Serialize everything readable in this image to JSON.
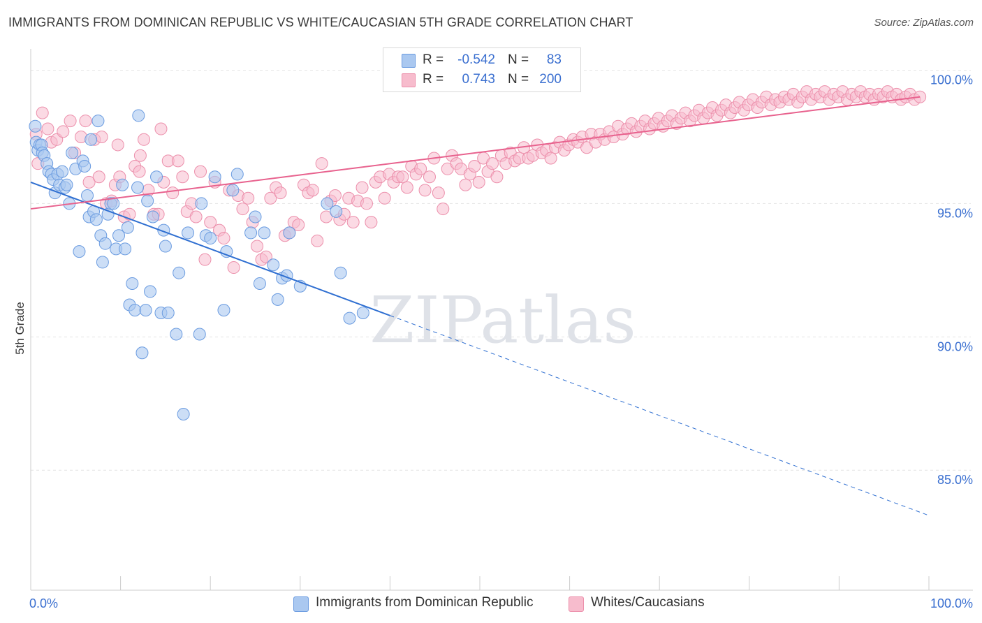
{
  "title": "IMMIGRANTS FROM DOMINICAN REPUBLIC VS WHITE/CAUCASIAN 5TH GRADE CORRELATION CHART",
  "source": "Source: ZipAtlas.com",
  "watermark": "ZIPatlas",
  "colors": {
    "blue_fill": "#aac8f0",
    "blue_stroke": "#6a9be0",
    "blue_line": "#2f6fd1",
    "pink_fill": "#f7bccd",
    "pink_stroke": "#ec8fab",
    "pink_line": "#e8628e",
    "axis_text": "#3a6fd0"
  },
  "legend": {
    "series1": {
      "r_label": "R =",
      "r_value": "-0.542",
      "n_label": "N =",
      "n_value": "83"
    },
    "series2": {
      "r_label": "R =",
      "r_value": "0.743",
      "n_label": "N =",
      "n_value": "200"
    }
  },
  "bottom_legend": {
    "series1": "Immigrants from Dominican Republic",
    "series2": "Whites/Caucasians"
  },
  "chart_data": {
    "type": "scatter",
    "title": "IMMIGRANTS FROM DOMINICAN REPUBLIC VS WHITE/CAUCASIAN 5TH GRADE CORRELATION CHART",
    "xlabel": "",
    "ylabel": "5th Grade",
    "xlim": [
      0,
      100
    ],
    "ylim": [
      80.5,
      100.8
    ],
    "x_tick_labels": [
      "0.0%",
      "100.0%"
    ],
    "y_ticks": [
      85,
      90,
      95,
      100
    ],
    "y_tick_labels": [
      "85.0%",
      "90.0%",
      "95.0%",
      "100.0%"
    ],
    "grid": true,
    "legend_position": "top-center",
    "series": [
      {
        "name": "Immigrants from Dominican Republic",
        "color": "#aac8f0",
        "r": -0.542,
        "n": 83,
        "trend_solid": {
          "x": [
            0,
            40
          ],
          "y": [
            95.8,
            90.8
          ]
        },
        "trend_dashed": {
          "x": [
            40,
            100
          ],
          "y": [
            90.8,
            83.3
          ]
        },
        "points": [
          [
            0.5,
            97.9
          ],
          [
            0.6,
            97.3
          ],
          [
            0.8,
            97.0
          ],
          [
            1.0,
            97.2
          ],
          [
            1.2,
            97.2
          ],
          [
            1.3,
            96.9
          ],
          [
            1.5,
            96.8
          ],
          [
            1.8,
            96.5
          ],
          [
            2.0,
            96.2
          ],
          [
            2.3,
            96.1
          ],
          [
            2.5,
            95.9
          ],
          [
            2.7,
            95.4
          ],
          [
            3.0,
            96.1
          ],
          [
            3.2,
            95.7
          ],
          [
            3.5,
            96.2
          ],
          [
            3.8,
            95.6
          ],
          [
            4.0,
            95.7
          ],
          [
            4.3,
            95.0
          ],
          [
            4.6,
            96.9
          ],
          [
            5.0,
            96.3
          ],
          [
            5.4,
            93.2
          ],
          [
            5.8,
            96.6
          ],
          [
            6.0,
            96.4
          ],
          [
            6.3,
            95.3
          ],
          [
            6.5,
            94.5
          ],
          [
            6.7,
            97.4
          ],
          [
            7.0,
            94.7
          ],
          [
            7.3,
            94.4
          ],
          [
            7.5,
            98.1
          ],
          [
            7.8,
            93.8
          ],
          [
            8.0,
            92.8
          ],
          [
            8.3,
            93.5
          ],
          [
            8.6,
            94.6
          ],
          [
            8.9,
            95.0
          ],
          [
            9.2,
            95.0
          ],
          [
            9.5,
            93.3
          ],
          [
            9.8,
            93.8
          ],
          [
            10.2,
            95.7
          ],
          [
            10.5,
            93.3
          ],
          [
            10.8,
            94.1
          ],
          [
            11.0,
            91.2
          ],
          [
            11.3,
            92.0
          ],
          [
            11.6,
            91.0
          ],
          [
            11.9,
            95.6
          ],
          [
            12.0,
            98.3
          ],
          [
            12.4,
            89.4
          ],
          [
            12.8,
            91.0
          ],
          [
            13.0,
            95.1
          ],
          [
            13.3,
            91.7
          ],
          [
            13.6,
            94.5
          ],
          [
            14.0,
            96.0
          ],
          [
            14.5,
            90.9
          ],
          [
            14.8,
            94.0
          ],
          [
            15.0,
            93.4
          ],
          [
            15.3,
            90.9
          ],
          [
            16.2,
            90.1
          ],
          [
            16.5,
            92.4
          ],
          [
            17.0,
            87.1
          ],
          [
            17.5,
            93.9
          ],
          [
            18.8,
            90.1
          ],
          [
            19.0,
            95.0
          ],
          [
            19.5,
            93.8
          ],
          [
            20.0,
            93.7
          ],
          [
            20.5,
            96.0
          ],
          [
            21.5,
            91.0
          ],
          [
            21.8,
            93.2
          ],
          [
            22.5,
            95.5
          ],
          [
            23.0,
            96.1
          ],
          [
            24.5,
            93.9
          ],
          [
            25.0,
            94.5
          ],
          [
            25.5,
            92.0
          ],
          [
            26.0,
            93.9
          ],
          [
            27.0,
            92.7
          ],
          [
            27.5,
            91.4
          ],
          [
            28.0,
            92.2
          ],
          [
            28.5,
            92.3
          ],
          [
            28.8,
            93.9
          ],
          [
            30.0,
            91.9
          ],
          [
            33.0,
            95.0
          ],
          [
            34.0,
            94.7
          ],
          [
            34.5,
            92.4
          ],
          [
            35.5,
            90.7
          ],
          [
            37.0,
            90.9
          ]
        ]
      },
      {
        "name": "Whites/Caucasians",
        "color": "#f7bccd",
        "r": 0.743,
        "n": 200,
        "trend_solid": {
          "x": [
            0,
            99
          ],
          "y": [
            94.8,
            99.0
          ]
        },
        "points": [
          [
            0.6,
            97.6
          ],
          [
            0.8,
            96.5
          ],
          [
            1.3,
            98.4
          ],
          [
            1.9,
            97.8
          ],
          [
            2.3,
            97.3
          ],
          [
            2.9,
            97.4
          ],
          [
            3.6,
            97.7
          ],
          [
            4.4,
            98.1
          ],
          [
            4.9,
            96.9
          ],
          [
            5.6,
            97.5
          ],
          [
            6.1,
            98.1
          ],
          [
            6.5,
            95.8
          ],
          [
            7.1,
            97.4
          ],
          [
            7.6,
            96.0
          ],
          [
            7.9,
            97.5
          ],
          [
            8.4,
            95.0
          ],
          [
            9.0,
            95.1
          ],
          [
            9.4,
            95.7
          ],
          [
            9.9,
            96.0
          ],
          [
            10.4,
            94.5
          ],
          [
            11.0,
            94.6
          ],
          [
            11.6,
            96.4
          ],
          [
            12.1,
            96.2
          ],
          [
            12.6,
            97.4
          ],
          [
            13.1,
            95.5
          ],
          [
            13.7,
            94.6
          ],
          [
            14.2,
            94.6
          ],
          [
            14.8,
            95.8
          ],
          [
            15.3,
            96.6
          ],
          [
            15.8,
            95.4
          ],
          [
            16.4,
            96.6
          ],
          [
            16.9,
            96.0
          ],
          [
            17.4,
            94.7
          ],
          [
            17.9,
            95.0
          ],
          [
            18.4,
            94.5
          ],
          [
            18.9,
            96.2
          ],
          [
            19.4,
            92.9
          ],
          [
            20.0,
            94.3
          ],
          [
            20.5,
            95.8
          ],
          [
            21.0,
            94.0
          ],
          [
            21.5,
            93.7
          ],
          [
            22.1,
            95.5
          ],
          [
            22.6,
            92.6
          ],
          [
            23.1,
            95.3
          ],
          [
            23.6,
            94.8
          ],
          [
            24.2,
            95.2
          ],
          [
            24.7,
            94.3
          ],
          [
            25.2,
            93.4
          ],
          [
            25.7,
            92.9
          ],
          [
            26.2,
            93.0
          ],
          [
            26.7,
            95.2
          ],
          [
            27.3,
            95.6
          ],
          [
            27.8,
            95.4
          ],
          [
            28.3,
            93.8
          ],
          [
            28.8,
            93.9
          ],
          [
            29.3,
            94.3
          ],
          [
            29.8,
            94.2
          ],
          [
            30.4,
            95.7
          ],
          [
            30.9,
            95.4
          ],
          [
            31.4,
            95.5
          ],
          [
            31.9,
            93.6
          ],
          [
            32.4,
            96.5
          ],
          [
            32.9,
            94.5
          ],
          [
            33.4,
            95.1
          ],
          [
            33.9,
            95.3
          ],
          [
            34.4,
            94.4
          ],
          [
            34.9,
            94.6
          ],
          [
            35.4,
            95.2
          ],
          [
            35.9,
            94.3
          ],
          [
            36.4,
            95.1
          ],
          [
            36.9,
            95.6
          ],
          [
            37.4,
            95.0
          ],
          [
            37.9,
            94.3
          ],
          [
            38.4,
            95.8
          ],
          [
            38.9,
            96.0
          ],
          [
            39.4,
            95.2
          ],
          [
            39.9,
            96.1
          ],
          [
            40.4,
            95.8
          ],
          [
            40.9,
            96.0
          ],
          [
            41.4,
            96.0
          ],
          [
            41.9,
            95.6
          ],
          [
            42.4,
            96.4
          ],
          [
            42.9,
            96.1
          ],
          [
            43.4,
            96.3
          ],
          [
            43.9,
            95.5
          ],
          [
            44.4,
            96.0
          ],
          [
            44.9,
            96.7
          ],
          [
            45.4,
            95.4
          ],
          [
            45.9,
            94.8
          ],
          [
            46.4,
            96.3
          ],
          [
            46.9,
            96.8
          ],
          [
            47.4,
            96.5
          ],
          [
            47.9,
            96.3
          ],
          [
            48.4,
            95.7
          ],
          [
            48.9,
            96.1
          ],
          [
            49.4,
            96.4
          ],
          [
            49.9,
            95.8
          ],
          [
            50.4,
            96.7
          ],
          [
            50.9,
            96.2
          ],
          [
            51.4,
            96.5
          ],
          [
            51.9,
            96.0
          ],
          [
            52.4,
            96.8
          ],
          [
            52.9,
            96.5
          ],
          [
            53.4,
            96.9
          ],
          [
            53.9,
            96.6
          ],
          [
            54.4,
            96.7
          ],
          [
            54.9,
            97.1
          ],
          [
            55.4,
            96.7
          ],
          [
            55.9,
            96.8
          ],
          [
            56.4,
            97.2
          ],
          [
            56.9,
            96.9
          ],
          [
            57.4,
            97.0
          ],
          [
            57.9,
            96.7
          ],
          [
            58.4,
            97.1
          ],
          [
            58.9,
            97.3
          ],
          [
            59.4,
            97.0
          ],
          [
            59.9,
            97.2
          ],
          [
            60.4,
            97.4
          ],
          [
            60.9,
            97.3
          ],
          [
            61.4,
            97.5
          ],
          [
            61.9,
            97.1
          ],
          [
            62.4,
            97.6
          ],
          [
            62.9,
            97.3
          ],
          [
            63.4,
            97.6
          ],
          [
            63.9,
            97.4
          ],
          [
            64.4,
            97.7
          ],
          [
            64.9,
            97.5
          ],
          [
            65.4,
            97.9
          ],
          [
            65.9,
            97.6
          ],
          [
            66.4,
            97.8
          ],
          [
            66.9,
            98.0
          ],
          [
            67.4,
            97.7
          ],
          [
            67.9,
            97.9
          ],
          [
            68.4,
            98.1
          ],
          [
            68.9,
            97.8
          ],
          [
            69.4,
            98.0
          ],
          [
            69.9,
            98.2
          ],
          [
            70.4,
            97.9
          ],
          [
            70.9,
            98.1
          ],
          [
            71.4,
            98.3
          ],
          [
            71.9,
            98.0
          ],
          [
            72.4,
            98.2
          ],
          [
            72.9,
            98.4
          ],
          [
            73.4,
            98.1
          ],
          [
            73.9,
            98.3
          ],
          [
            74.4,
            98.5
          ],
          [
            74.9,
            98.2
          ],
          [
            75.4,
            98.4
          ],
          [
            75.9,
            98.6
          ],
          [
            76.4,
            98.3
          ],
          [
            76.9,
            98.5
          ],
          [
            77.4,
            98.7
          ],
          [
            77.9,
            98.4
          ],
          [
            78.4,
            98.6
          ],
          [
            78.9,
            98.8
          ],
          [
            79.4,
            98.5
          ],
          [
            79.9,
            98.7
          ],
          [
            80.4,
            98.9
          ],
          [
            80.9,
            98.6
          ],
          [
            81.4,
            98.8
          ],
          [
            81.9,
            99.0
          ],
          [
            82.4,
            98.7
          ],
          [
            82.9,
            98.9
          ],
          [
            83.4,
            98.8
          ],
          [
            83.9,
            99.0
          ],
          [
            84.4,
            98.9
          ],
          [
            84.9,
            99.1
          ],
          [
            85.4,
            98.8
          ],
          [
            85.9,
            99.0
          ],
          [
            86.4,
            99.2
          ],
          [
            86.9,
            98.9
          ],
          [
            87.4,
            99.1
          ],
          [
            87.9,
            99.0
          ],
          [
            88.4,
            99.2
          ],
          [
            88.9,
            98.9
          ],
          [
            89.4,
            99.1
          ],
          [
            89.9,
            99.0
          ],
          [
            90.4,
            99.2
          ],
          [
            90.9,
            98.9
          ],
          [
            91.4,
            99.1
          ],
          [
            91.9,
            99.0
          ],
          [
            92.4,
            99.2
          ],
          [
            92.9,
            99.0
          ],
          [
            93.4,
            99.1
          ],
          [
            93.9,
            98.9
          ],
          [
            94.4,
            99.1
          ],
          [
            94.9,
            99.0
          ],
          [
            95.4,
            99.2
          ],
          [
            95.9,
            99.0
          ],
          [
            96.4,
            99.1
          ],
          [
            96.9,
            98.9
          ],
          [
            97.4,
            99.0
          ],
          [
            97.9,
            99.1
          ],
          [
            98.4,
            98.9
          ],
          [
            99.0,
            99.0
          ],
          [
            12.2,
            96.8
          ],
          [
            14.5,
            97.8
          ],
          [
            9.7,
            97.2
          ]
        ]
      }
    ]
  }
}
